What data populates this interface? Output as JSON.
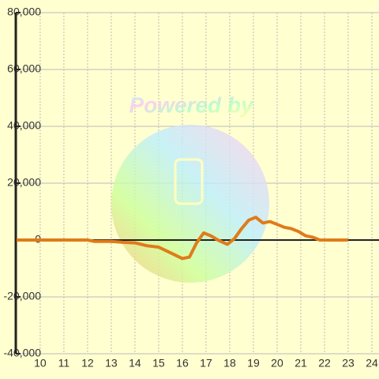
{
  "chart_data": {
    "type": "line",
    "watermark": "Powered by",
    "x": [
      9,
      12,
      12.3,
      13,
      13.5,
      14,
      14.5,
      15,
      15.5,
      16,
      16.3,
      16.6,
      16.9,
      17.2,
      17.5,
      17.9,
      18.2,
      18.5,
      18.8,
      19.1,
      19.4,
      19.7,
      20,
      20.3,
      20.6,
      20.9,
      21.2,
      21.5,
      21.8,
      22,
      23
    ],
    "series": [
      {
        "color": "#e07b1a",
        "values": [
          0,
          0,
          -500,
          -500,
          -800,
          -1000,
          -2000,
          -2500,
          -4500,
          -6500,
          -6000,
          -1000,
          2500,
          1500,
          0,
          -1500,
          500,
          4000,
          7000,
          8000,
          6000,
          6500,
          5500,
          4500,
          4000,
          3000,
          1500,
          1000,
          0,
          0,
          0
        ]
      }
    ],
    "xlim": [
      8.97,
      24.3
    ],
    "xticks": [
      10,
      11,
      12,
      13,
      14,
      15,
      16,
      17,
      18,
      19,
      20,
      21,
      22,
      23,
      24
    ],
    "ylim": [
      -40000,
      80000
    ],
    "yticks": [
      {
        "value": -40000,
        "label": "-40,000"
      },
      {
        "value": -20000,
        "label": "-20,000"
      },
      0,
      {
        "value": 20000,
        "label": "20,000"
      },
      {
        "value": 40000,
        "label": "40,000"
      },
      {
        "value": 60000,
        "label": "60,000"
      },
      {
        "value": 80000,
        "label": "80,000"
      }
    ],
    "grid": true
  }
}
